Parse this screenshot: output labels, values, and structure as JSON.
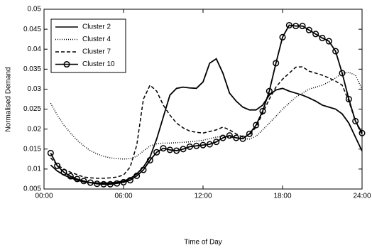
{
  "chart_data": {
    "type": "line",
    "xlabel": "Time of Day",
    "ylabel": "Normalised Demand",
    "x": [
      0.5,
      1,
      1.5,
      2,
      2.5,
      3,
      3.5,
      4,
      4.5,
      5,
      5.5,
      6,
      6.5,
      7,
      7.5,
      8,
      8.5,
      9,
      9.5,
      10,
      10.5,
      11,
      11.5,
      12,
      12.5,
      13,
      13.5,
      14,
      14.5,
      15,
      15.5,
      16,
      16.5,
      17,
      17.5,
      18,
      18.5,
      19,
      19.5,
      20,
      20.5,
      21,
      21.5,
      22,
      22.5,
      23,
      23.5,
      24
    ],
    "xlim": [
      0,
      24
    ],
    "xticks": [
      {
        "value": 0,
        "label": "00:00"
      },
      {
        "value": 6,
        "label": "06:00"
      },
      {
        "value": 12,
        "label": "12:00"
      },
      {
        "value": 18,
        "label": "18:00"
      },
      {
        "value": 24,
        "label": "24:00"
      }
    ],
    "ylim": [
      0.005,
      0.05
    ],
    "yticks": [
      0.005,
      0.01,
      0.015,
      0.02,
      0.025,
      0.03,
      0.035,
      0.04,
      0.045,
      0.05
    ],
    "grid": false,
    "legend": "upper left",
    "series": [
      {
        "name": "Cluster 2",
        "color": "#000000",
        "dash": "solid",
        "marker": "none",
        "values": [
          0.011,
          0.0095,
          0.0085,
          0.0078,
          0.0072,
          0.0068,
          0.0066,
          0.0065,
          0.0065,
          0.0065,
          0.0067,
          0.007,
          0.0076,
          0.0088,
          0.0105,
          0.013,
          0.0175,
          0.023,
          0.0285,
          0.0302,
          0.0305,
          0.0303,
          0.0302,
          0.0318,
          0.0365,
          0.0376,
          0.034,
          0.029,
          0.027,
          0.0255,
          0.0248,
          0.0248,
          0.026,
          0.0285,
          0.0298,
          0.0302,
          0.0295,
          0.029,
          0.0285,
          0.0278,
          0.027,
          0.026,
          0.0255,
          0.025,
          0.0238,
          0.0215,
          0.018,
          0.0145
        ]
      },
      {
        "name": "Cluster 4",
        "color": "#000000",
        "dash": "dotted",
        "marker": "none",
        "values": [
          0.0265,
          0.0235,
          0.021,
          0.019,
          0.0172,
          0.0158,
          0.0146,
          0.0138,
          0.0132,
          0.0128,
          0.0126,
          0.0125,
          0.0126,
          0.0132,
          0.0145,
          0.0158,
          0.0163,
          0.0165,
          0.0165,
          0.0166,
          0.0167,
          0.0168,
          0.017,
          0.0172,
          0.0176,
          0.018,
          0.0182,
          0.018,
          0.0178,
          0.0176,
          0.0175,
          0.0182,
          0.0198,
          0.0215,
          0.0232,
          0.025,
          0.0265,
          0.028,
          0.029,
          0.03,
          0.0305,
          0.031,
          0.0318,
          0.0328,
          0.034,
          0.0342,
          0.0335,
          0.03
        ]
      },
      {
        "name": "Cluster 7",
        "color": "#000000",
        "dash": "dashed",
        "marker": "none",
        "values": [
          0.0128,
          0.011,
          0.01,
          0.0092,
          0.0086,
          0.008,
          0.0078,
          0.0077,
          0.0077,
          0.0078,
          0.008,
          0.0085,
          0.0105,
          0.016,
          0.0275,
          0.031,
          0.0295,
          0.026,
          0.0235,
          0.0215,
          0.0203,
          0.0195,
          0.0192,
          0.019,
          0.0194,
          0.0198,
          0.0205,
          0.0198,
          0.0188,
          0.018,
          0.0185,
          0.0205,
          0.024,
          0.0275,
          0.0305,
          0.0325,
          0.034,
          0.0355,
          0.0356,
          0.0345,
          0.034,
          0.0335,
          0.0328,
          0.032,
          0.031,
          0.027,
          0.022,
          0.0185
        ]
      },
      {
        "name": "Cluster 10",
        "color": "#000000",
        "dash": "solid",
        "marker": "circle",
        "values": [
          0.014,
          0.0108,
          0.0092,
          0.0082,
          0.0075,
          0.007,
          0.0066,
          0.0063,
          0.0062,
          0.0062,
          0.0064,
          0.0067,
          0.0072,
          0.0083,
          0.0098,
          0.0122,
          0.0142,
          0.0152,
          0.0148,
          0.0146,
          0.015,
          0.0156,
          0.0158,
          0.016,
          0.0162,
          0.0168,
          0.0178,
          0.0184,
          0.0178,
          0.0176,
          0.0188,
          0.021,
          0.0245,
          0.0295,
          0.0365,
          0.043,
          0.046,
          0.0458,
          0.0458,
          0.0448,
          0.0438,
          0.0428,
          0.042,
          0.0395,
          0.034,
          0.0275,
          0.022,
          0.019
        ]
      }
    ]
  }
}
